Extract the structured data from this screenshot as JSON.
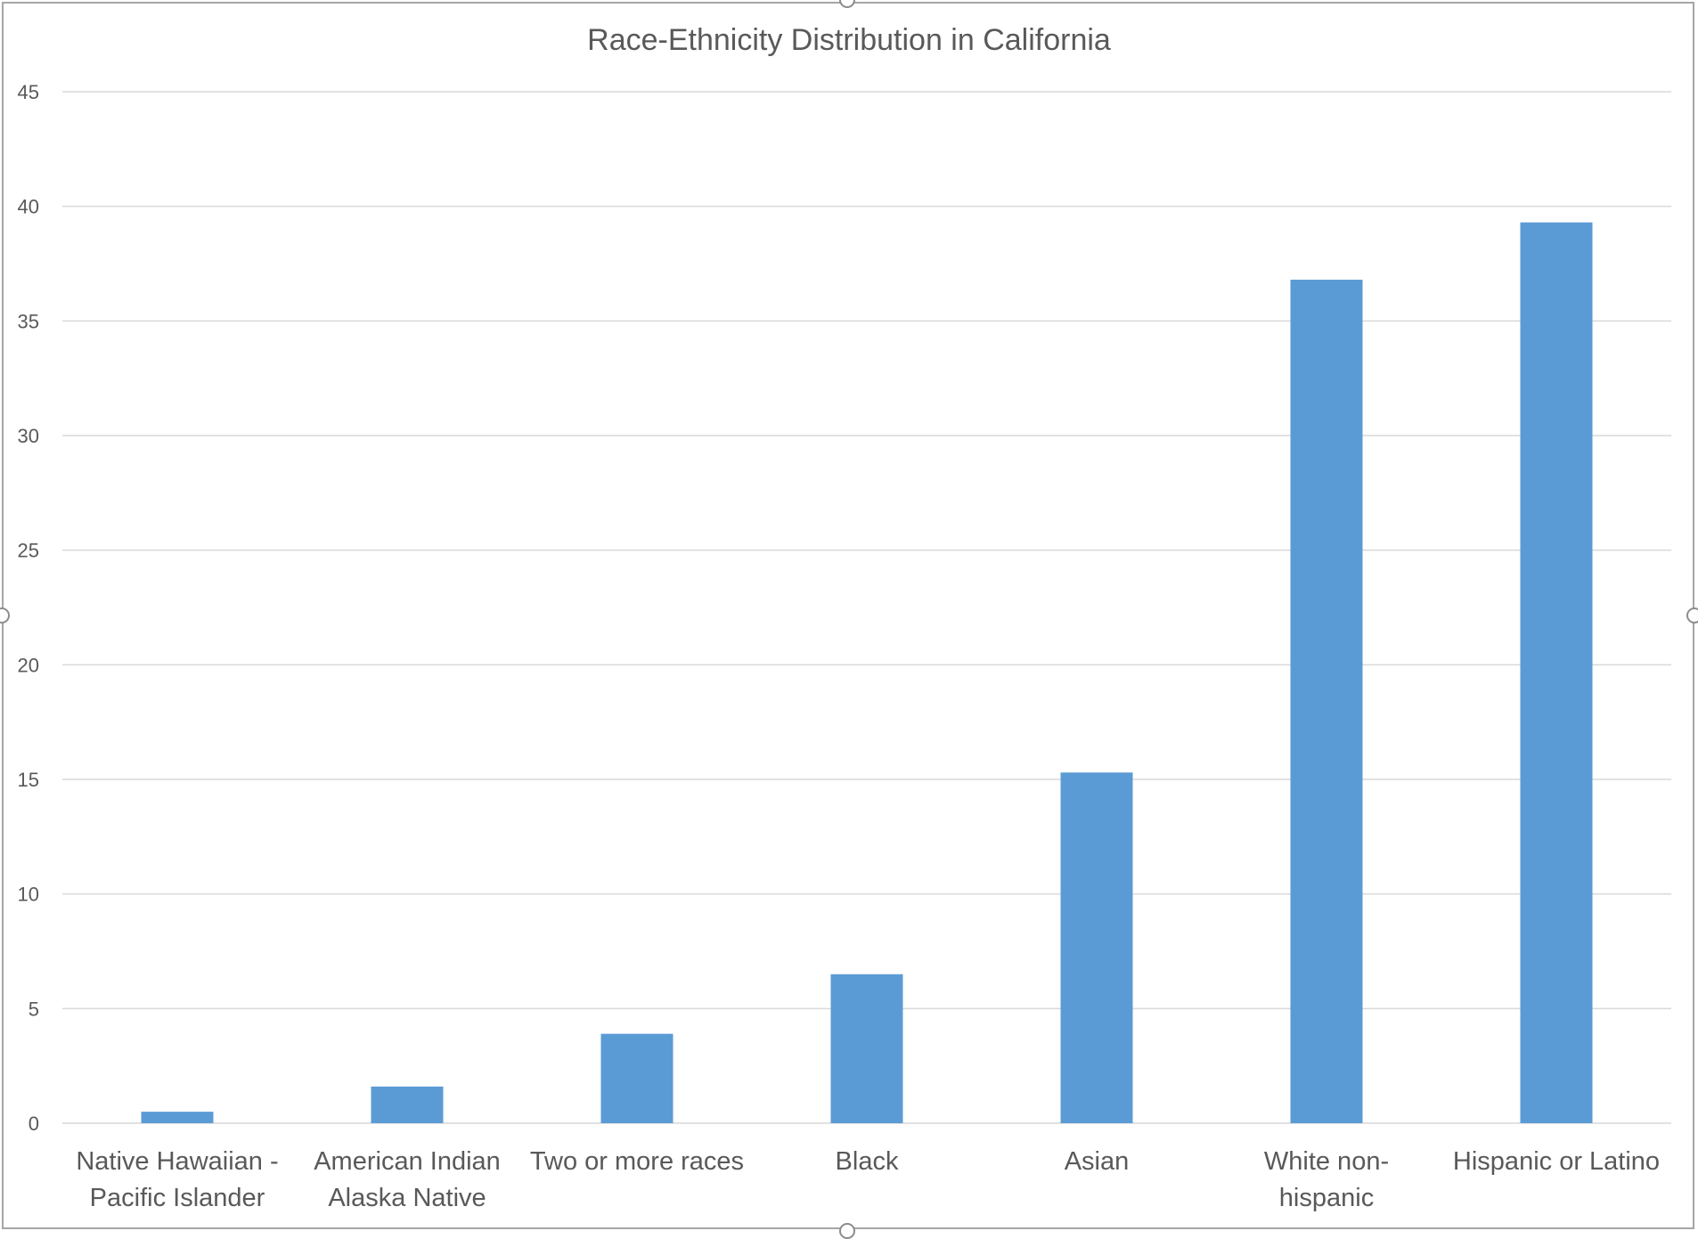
{
  "chart_data": {
    "type": "bar",
    "title": "Race-Ethnicity Distribution in California",
    "xlabel": "",
    "ylabel": "",
    "categories": [
      [
        "Native Hawaiian -",
        "Pacific Islander"
      ],
      [
        "American Indian",
        "Alaska Native"
      ],
      [
        "Two or more races"
      ],
      [
        "Black"
      ],
      [
        "Asian"
      ],
      [
        "White non-",
        "hispanic"
      ],
      [
        "Hispanic or Latino"
      ]
    ],
    "values": [
      0.5,
      1.6,
      3.9,
      6.5,
      15.3,
      36.8,
      39.3
    ],
    "ylim": [
      0,
      45
    ],
    "yticks": [
      0,
      5,
      10,
      15,
      20,
      25,
      30,
      35,
      40,
      45
    ],
    "grid": true,
    "legend": "none",
    "bar_color": "#5b9bd5",
    "grid_color": "#d9d9d9",
    "text_color": "#595959"
  }
}
